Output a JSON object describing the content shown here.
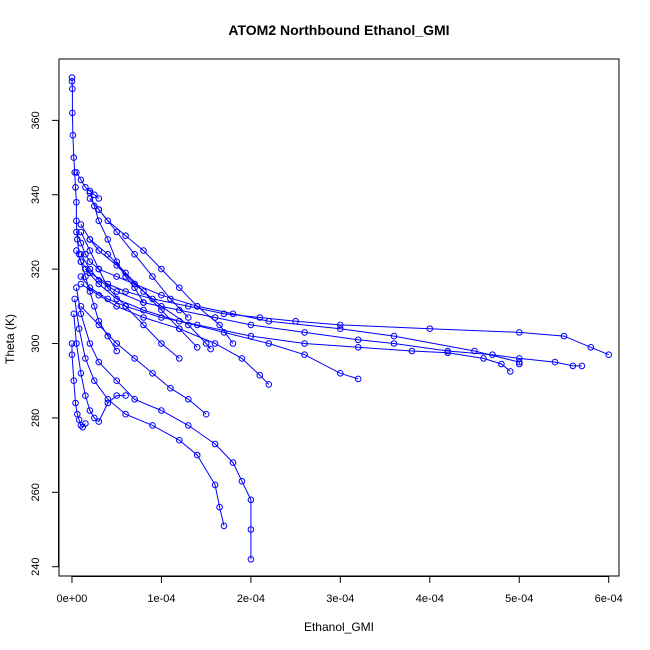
{
  "chart_data": {
    "type": "scatter",
    "title": "ATOM2 Northbound Ethanol_GMI",
    "xlabel": "Ethanol_GMI",
    "ylabel": "Theta (K)",
    "xlim": [
      -1.45e-05,
      0.0006115
    ],
    "ylim": [
      237.5,
      376.5
    ],
    "x_ticks": [
      0,
      0.0001,
      0.0002,
      0.0003,
      0.0004,
      0.0005,
      0.0006
    ],
    "x_tick_labels": [
      "0e+00",
      "1e-04",
      "2e-04",
      "3e-04",
      "4e-04",
      "5e-04",
      "6e-04"
    ],
    "y_ticks": [
      240,
      260,
      280,
      300,
      320,
      340,
      360
    ],
    "y_tick_labels": [
      "240",
      "260",
      "280",
      "300",
      "320",
      "340",
      "360"
    ],
    "grid": false,
    "marker": "open-circle",
    "line_style": "connected",
    "color": "#0000ff",
    "series": [
      {
        "x": [
          0.0,
          0.0,
          5e-07,
          5e-07,
          1e-06,
          2e-06,
          3e-06,
          4e-06,
          5e-06,
          5e-06,
          6e-06,
          8e-06
        ],
        "y": [
          371.5,
          370.5,
          368.5,
          362.0,
          356.0,
          350.0,
          346.0,
          342.0,
          338.0,
          333.0,
          328.0,
          324.0
        ]
      },
      {
        "x": [
          5e-06,
          1e-05,
          1.5e-05,
          2e-05,
          3e-05,
          5e-05,
          7e-05,
          0.0001,
          0.00014,
          0.00018,
          0.00022,
          0.0003,
          0.00036,
          0.00045,
          0.0005,
          0.0005
        ],
        "y": [
          330.0,
          327.0,
          324.0,
          322.0,
          320.0,
          318.0,
          316.0,
          313.0,
          310.0,
          308.0,
          306.0,
          304.0,
          302.0,
          298.0,
          295.0,
          294.5
        ]
      },
      {
        "x": [
          5e-06,
          1e-05,
          2e-05,
          4e-05,
          6e-05,
          9e-05,
          0.00013,
          0.00017,
          0.00021,
          0.00025,
          0.0003,
          0.0004,
          0.0005,
          0.00055,
          0.00058,
          0.0006
        ],
        "y": [
          325.0,
          322.0,
          319.0,
          316.0,
          314.0,
          312.0,
          310.0,
          308.0,
          307.0,
          306.0,
          305.0,
          304.0,
          303.0,
          302.0,
          299.0,
          297.0
        ]
      },
      {
        "x": [
          1e-05,
          2e-05,
          3e-05,
          5e-05,
          8e-05,
          0.00012,
          0.00016,
          0.0002,
          0.00026,
          0.00032,
          0.00036,
          0.00042,
          0.00047,
          0.0005,
          0.00054,
          0.00056,
          0.00057
        ],
        "y": [
          324.0,
          320.0,
          317.0,
          314.0,
          311.0,
          309.0,
          307.0,
          305.0,
          303.0,
          301.0,
          300.0,
          298.0,
          297.0,
          296.0,
          295.0,
          294.0,
          294.0
        ]
      },
      {
        "x": [
          1e-05,
          2e-05,
          4e-05,
          6e-05,
          0.0001,
          0.00014,
          0.0002,
          0.00026,
          0.00032,
          0.00038,
          0.00042,
          0.00046,
          0.00048,
          0.00049
        ],
        "y": [
          318.0,
          315.0,
          312.0,
          310.0,
          307.0,
          305.0,
          302.0,
          300.0,
          299.0,
          298.0,
          297.5,
          296.0,
          294.5,
          292.5
        ]
      },
      {
        "x": [
          1e-05,
          3e-05,
          5e-05,
          8e-05,
          0.00012,
          0.00016,
          0.00019,
          0.00021,
          0.00022
        ],
        "y": [
          316.0,
          313.0,
          310.0,
          307.0,
          304.0,
          300.0,
          296.0,
          291.5,
          289.0
        ]
      },
      {
        "x": [
          1.5e-05,
          3e-05,
          5e-05,
          8e-05,
          0.00012,
          0.00017,
          0.00022,
          0.00026,
          0.0003,
          0.00032
        ],
        "y": [
          320.0,
          316.0,
          312.0,
          309.0,
          306.0,
          303.0,
          300.0,
          297.0,
          292.0,
          290.5
        ]
      },
      {
        "x": [
          5e-06,
          1e-05,
          2e-05,
          3e-05,
          5e-05,
          7e-05,
          0.0001,
          0.00013,
          0.00016,
          0.00018,
          0.00019,
          0.0002,
          0.0002,
          0.0002
        ],
        "y": [
          315.0,
          308.0,
          300.0,
          295.0,
          290.0,
          285.0,
          282.0,
          278.0,
          273.0,
          268.0,
          263.0,
          258.0,
          250.0,
          242.0
        ]
      },
      {
        "x": [
          3e-06,
          8e-06,
          1.5e-05,
          2.5e-05,
          4e-05,
          6e-05,
          9e-05,
          0.00012,
          0.00014,
          0.00016,
          0.000165,
          0.00017
        ],
        "y": [
          312.0,
          304.0,
          296.0,
          290.0,
          285.0,
          281.0,
          278.0,
          274.0,
          270.0,
          262.0,
          256.0,
          251.0
        ]
      },
      {
        "x": [
          2e-06,
          5e-06,
          1e-05,
          1.5e-05,
          2e-05,
          2.5e-05,
          3e-05,
          4e-05,
          5e-05,
          6e-05
        ],
        "y": [
          308.0,
          300.0,
          292.0,
          286.0,
          282.0,
          280.0,
          279.0,
          284.0,
          286.0,
          286.0
        ]
      },
      {
        "x": [
          0.0,
          0.0,
          2e-06,
          4e-06,
          6e-06,
          8e-06,
          1e-05,
          1.2e-05,
          1.5e-05
        ],
        "y": [
          300.0,
          297.0,
          290.0,
          284.0,
          281.0,
          279.5,
          278.0,
          277.5,
          278.5
        ]
      },
      {
        "x": [
          1e-05,
          2e-05,
          3e-05,
          5e-05,
          7e-05,
          0.0001,
          0.00013,
          0.00015,
          0.000155
        ],
        "y": [
          332.0,
          328.0,
          325.0,
          321.0,
          316.0,
          310.0,
          305.0,
          300.0,
          298.5
        ]
      },
      {
        "x": [
          2e-05,
          3e-05,
          4e-05,
          6e-05,
          8e-05,
          0.0001,
          0.00012,
          0.00014,
          0.000165,
          0.00018
        ],
        "y": [
          339.0,
          336.0,
          333.0,
          329.0,
          325.0,
          320.0,
          315.0,
          310.0,
          305.0,
          300.0
        ]
      },
      {
        "x": [
          2e-05,
          2.5e-05,
          3e-05,
          4e-05,
          5e-05,
          6e-05,
          7e-05,
          8e-05
        ],
        "y": [
          340.5,
          337.0,
          333.0,
          328.0,
          322.0,
          318.0,
          315.0,
          311.0
        ]
      },
      {
        "x": [
          5e-06,
          1e-05,
          1.5e-05,
          2e-05,
          2.5e-05,
          3e-05
        ],
        "y": [
          346.0,
          344.0,
          342.0,
          341.0,
          340.0,
          339.0
        ]
      },
      {
        "x": [
          1e-05,
          2e-05,
          3e-05,
          4e-05,
          6e-05,
          8e-05,
          0.0001,
          0.00012
        ],
        "y": [
          330.0,
          325.0,
          320.0,
          315.0,
          310.0,
          305.0,
          300.0,
          296.0
        ]
      },
      {
        "x": [
          2e-05,
          4e-05,
          6e-05,
          8e-05,
          0.0001,
          0.00012,
          0.00014
        ],
        "y": [
          328.0,
          324.0,
          319.0,
          314.0,
          309.0,
          304.0,
          299.0
        ]
      },
      {
        "x": [
          1e-05,
          3e-05,
          5e-05,
          7e-05,
          9e-05,
          0.00011,
          0.00013,
          0.00015
        ],
        "y": [
          310.0,
          305.0,
          300.0,
          296.0,
          292.0,
          288.0,
          285.0,
          281.0
        ]
      },
      {
        "x": [
          3e-05,
          5e-05,
          7e-05,
          9e-05,
          0.00011,
          0.00013
        ],
        "y": [
          336.0,
          330.0,
          324.0,
          318.0,
          312.0,
          307.0
        ]
      },
      {
        "x": [
          1e-05,
          1.5e-05,
          2e-05,
          2.5e-05,
          3e-05,
          4e-05,
          5e-05
        ],
        "y": [
          322.0,
          318.0,
          314.0,
          310.0,
          306.0,
          302.0,
          298.0
        ]
      }
    ]
  }
}
